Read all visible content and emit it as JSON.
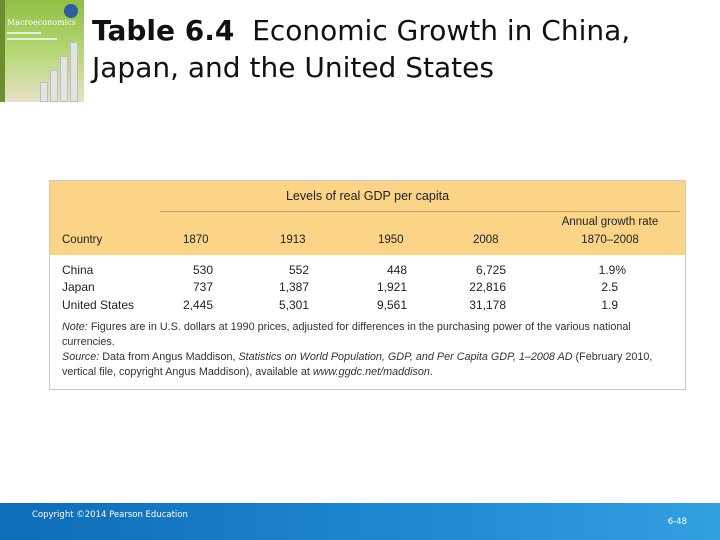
{
  "book": {
    "title": "Macroeconomics"
  },
  "slide": {
    "title_number": "Table 6.4",
    "title_text": "Economic Growth in China, Japan, and the United States"
  },
  "table": {
    "spanner": "Levels of real GDP per capita",
    "growth_header_line1": "Annual growth rate",
    "growth_header_line2": "1870–2008",
    "columns": [
      "Country",
      "1870",
      "1913",
      "1950",
      "2008"
    ],
    "rows": [
      {
        "country": "China",
        "v1870": "530",
        "v1913": "552",
        "v1950": "448",
        "v2008": "6,725",
        "growth": "1.9%"
      },
      {
        "country": "Japan",
        "v1870": "737",
        "v1913": "1,387",
        "v1950": "1,921",
        "v2008": "22,816",
        "growth": "2.5"
      },
      {
        "country": "United States",
        "v1870": "2,445",
        "v1913": "5,301",
        "v1950": "9,561",
        "v2008": "31,178",
        "growth": "1.9"
      }
    ],
    "note_label": "Note:",
    "note_text": "Figures are in U.S. dollars at 1990 prices, adjusted for differences in the purchasing power of the various national currencies.",
    "source_label": "Source:",
    "source_pre": "Data from Angus Maddison,",
    "source_title": "Statistics on World Population, GDP, and Per Capita GDP, 1–2008 AD",
    "source_post": "(February 2010, vertical file, copyright Angus Maddison), available at",
    "source_url": "www.ggdc.net/maddison",
    "source_end": "."
  },
  "footer": {
    "copyright": "Copyright ©2014 Pearson Education",
    "page_number": "6-48"
  },
  "colors": {
    "header_fill": "#fbd487",
    "footer_blue": "#1d87d0"
  }
}
